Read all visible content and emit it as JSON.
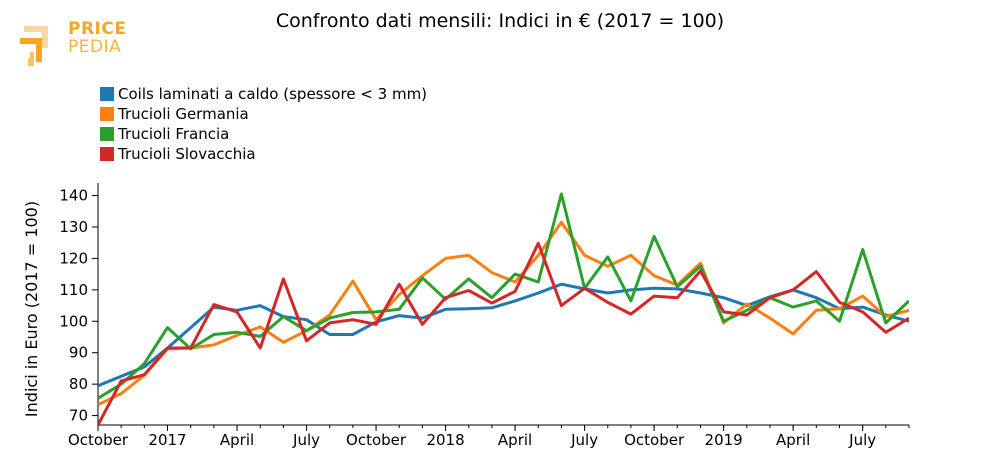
{
  "logo": {
    "line1": "PRICE",
    "line2": "PEDIA",
    "brand_color": "#f5a623"
  },
  "chart_data": {
    "type": "line",
    "title": "Confronto dati mensili: Indici in € (2017 = 100)",
    "ylabel": "Indici in Euro (2017 = 100)",
    "xlabel": "",
    "ylim": [
      67,
      144
    ],
    "yticks": [
      70,
      80,
      90,
      100,
      110,
      120,
      130,
      140
    ],
    "x": [
      "2016-10",
      "2016-11",
      "2016-12",
      "2017-01",
      "2017-02",
      "2017-03",
      "2017-04",
      "2017-05",
      "2017-06",
      "2017-07",
      "2017-08",
      "2017-09",
      "2017-10",
      "2017-11",
      "2017-12",
      "2018-01",
      "2018-02",
      "2018-03",
      "2018-04",
      "2018-05",
      "2018-06",
      "2018-07",
      "2018-08",
      "2018-09",
      "2018-10",
      "2018-11",
      "2018-12",
      "2019-01",
      "2019-02",
      "2019-03",
      "2019-04",
      "2019-05",
      "2019-06",
      "2019-07",
      "2019-08",
      "2019-09"
    ],
    "xticks": [
      {
        "at": "2016-10",
        "label": "October"
      },
      {
        "at": "2017-01",
        "label": "2017"
      },
      {
        "at": "2017-04",
        "label": "April"
      },
      {
        "at": "2017-07",
        "label": "July"
      },
      {
        "at": "2017-10",
        "label": "October"
      },
      {
        "at": "2018-01",
        "label": "2018"
      },
      {
        "at": "2018-04",
        "label": "April"
      },
      {
        "at": "2018-07",
        "label": "July"
      },
      {
        "at": "2018-10",
        "label": "October"
      },
      {
        "at": "2019-01",
        "label": "2019"
      },
      {
        "at": "2019-04",
        "label": "April"
      },
      {
        "at": "2019-07",
        "label": "July"
      }
    ],
    "legend_position": "top-left",
    "grid": false,
    "series": [
      {
        "name": "Coils laminati a caldo (spessore < 3 mm)",
        "color": "#1f77b4",
        "values": [
          79.5,
          82.5,
          85.5,
          91.5,
          98,
          104.5,
          103.5,
          105,
          101.5,
          100.5,
          95.8,
          95.8,
          99.8,
          101.8,
          101,
          103.8,
          104,
          104.3,
          106.5,
          109,
          111.8,
          110.3,
          109,
          110,
          110.5,
          110.3,
          109,
          107.5,
          105,
          107.8,
          110,
          107.5,
          104,
          104.5,
          102,
          100
        ]
      },
      {
        "name": "Trucioli Germania",
        "color": "#ff7f0e",
        "values": [
          73.5,
          77,
          82.8,
          91.2,
          91.5,
          92.5,
          95.5,
          98.2,
          93.3,
          97,
          102,
          112.8,
          100.5,
          108.5,
          114.5,
          120,
          121,
          115.5,
          112.5,
          121,
          131.5,
          121,
          117.5,
          121,
          114.5,
          111.5,
          118.5,
          99.5,
          105.5,
          101,
          96,
          103.5,
          104,
          108,
          101.5,
          103.5
        ]
      },
      {
        "name": "Trucioli Francia",
        "color": "#2ca02c",
        "values": [
          75.5,
          80,
          86.5,
          98,
          91.2,
          95.8,
          96.5,
          95.2,
          101.5,
          97,
          101,
          102.8,
          103,
          103.8,
          113.8,
          107,
          113.5,
          107.5,
          115,
          112.5,
          140.5,
          110.5,
          120.5,
          106.5,
          127,
          111,
          117.5,
          100,
          103.5,
          107.5,
          104.5,
          106.5,
          100,
          122.8,
          99.5,
          106.5
        ]
      },
      {
        "name": "Trucioli Slovacchia",
        "color": "#d62728",
        "values": [
          67,
          81,
          83,
          91.5,
          91.5,
          105.3,
          103,
          91.5,
          113.5,
          93.8,
          99.5,
          100.5,
          99,
          111.8,
          99,
          107.5,
          109.8,
          105.8,
          109.5,
          124.8,
          105,
          110.5,
          106,
          102.3,
          108,
          107.5,
          116,
          103,
          102,
          107.5,
          110,
          115.8,
          106,
          103,
          96.5,
          101
        ]
      }
    ]
  }
}
